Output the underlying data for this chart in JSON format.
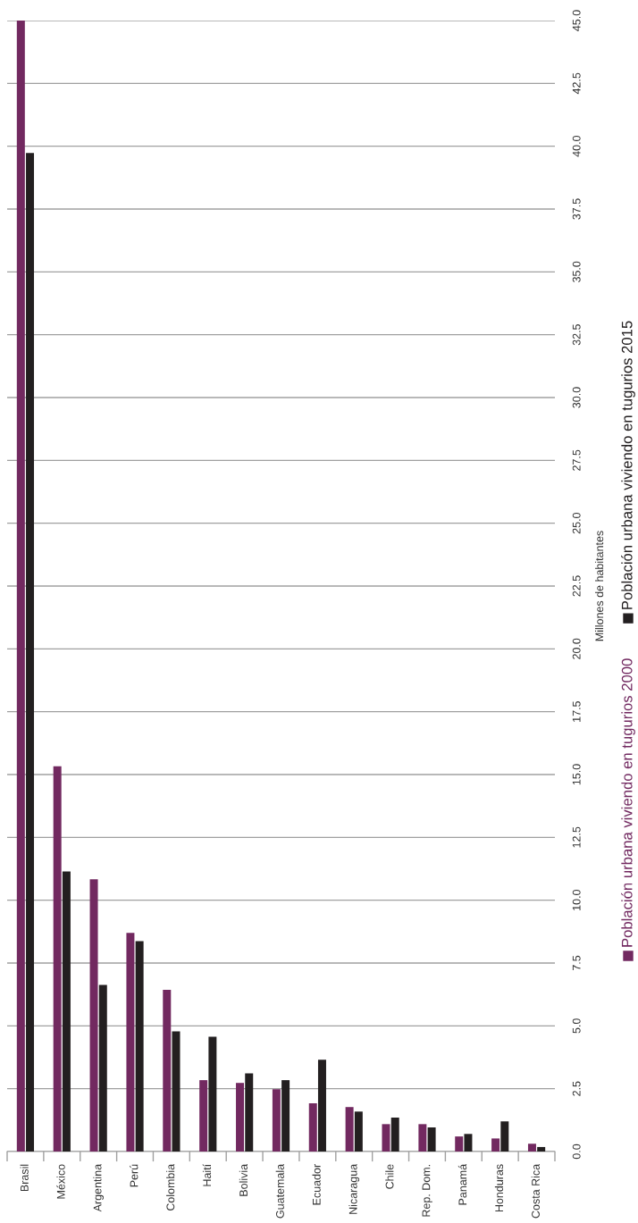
{
  "chart_data": {
    "type": "bar",
    "ylabel": "Millones de habitantes",
    "categories": [
      "Brasil",
      "México",
      "Argentina",
      "Perú",
      "Colombia",
      "Haití",
      "Bolivia",
      "Guatemala",
      "Ecuador",
      "Nicaragua",
      "Chile",
      "Rep. Dom.",
      "Panamá",
      "Honduras",
      "Costa Rica"
    ],
    "series": [
      {
        "name": "Población urbana viviendo en tugurios 2000",
        "color": "#722960",
        "values": [
          45.0,
          15.33,
          10.83,
          8.7,
          6.43,
          2.84,
          2.73,
          2.48,
          1.92,
          1.77,
          1.09,
          1.09,
          0.6,
          0.52,
          0.31
        ]
      },
      {
        "name": "Población urbana viviendo en tugurios 2015",
        "color": "#231f20",
        "values": [
          39.73,
          11.14,
          6.63,
          8.37,
          4.78,
          4.57,
          3.11,
          2.84,
          3.65,
          1.59,
          1.35,
          0.96,
          0.7,
          1.2,
          0.18
        ]
      }
    ],
    "ylim": [
      0,
      45
    ],
    "yticks": [
      {
        "value": 0,
        "label": "0.0"
      },
      {
        "value": 2.5,
        "label": "2.5"
      },
      {
        "value": 5,
        "label": "5.0"
      },
      {
        "value": 7.5,
        "label": "7.5"
      },
      {
        "value": 10,
        "label": "10.0"
      },
      {
        "value": 12.5,
        "label": "12.5"
      },
      {
        "value": 15,
        "label": "15.0"
      },
      {
        "value": 17.5,
        "label": "17.5"
      },
      {
        "value": 20,
        "label": "20.0"
      },
      {
        "value": 22.5,
        "label": "22.5"
      },
      {
        "value": 25,
        "label": "25.0"
      },
      {
        "value": 27.5,
        "label": "27.5"
      },
      {
        "value": 30,
        "label": "30.0"
      },
      {
        "value": 32.5,
        "label": "32.5"
      },
      {
        "value": 35,
        "label": "35.0"
      },
      {
        "value": 37.5,
        "label": "37.5"
      },
      {
        "value": 40,
        "label": "40.0"
      },
      {
        "value": 42.5,
        "label": "42.5"
      },
      {
        "value": 45,
        "label": "45.0"
      }
    ],
    "grid": "y",
    "legend": "right"
  }
}
